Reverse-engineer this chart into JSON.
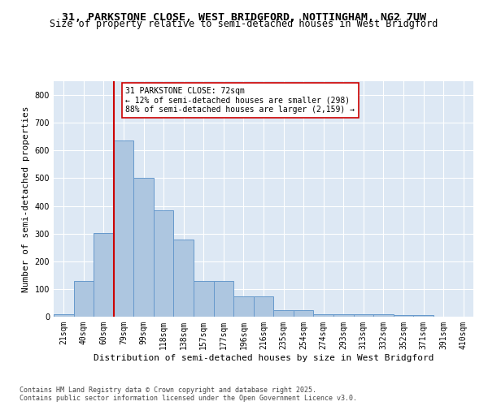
{
  "title": "31, PARKSTONE CLOSE, WEST BRIDGFORD, NOTTINGHAM, NG2 7UW",
  "subtitle": "Size of property relative to semi-detached houses in West Bridgford",
  "xlabel": "Distribution of semi-detached houses by size in West Bridgford",
  "ylabel": "Number of semi-detached properties",
  "categories": [
    "21sqm",
    "40sqm",
    "60sqm",
    "79sqm",
    "99sqm",
    "118sqm",
    "138sqm",
    "157sqm",
    "177sqm",
    "196sqm",
    "216sqm",
    "235sqm",
    "254sqm",
    "274sqm",
    "293sqm",
    "313sqm",
    "332sqm",
    "352sqm",
    "371sqm",
    "391sqm",
    "410sqm"
  ],
  "values": [
    8,
    128,
    302,
    635,
    500,
    383,
    278,
    130,
    130,
    72,
    72,
    23,
    23,
    10,
    10,
    8,
    8,
    5,
    5,
    0,
    0
  ],
  "bar_color": "#adc6e0",
  "bar_edge_color": "#6699cc",
  "background_color": "#dde8f4",
  "grid_color": "#ffffff",
  "vline_color": "#cc0000",
  "annotation_text": "31 PARKSTONE CLOSE: 72sqm\n← 12% of semi-detached houses are smaller (298)\n88% of semi-detached houses are larger (2,159) →",
  "annotation_box_color": "#ffffff",
  "annotation_box_edge": "#cc0000",
  "ylim": [
    0,
    850
  ],
  "yticks": [
    0,
    100,
    200,
    300,
    400,
    500,
    600,
    700,
    800
  ],
  "footer": "Contains HM Land Registry data © Crown copyright and database right 2025.\nContains public sector information licensed under the Open Government Licence v3.0.",
  "title_fontsize": 9.5,
  "subtitle_fontsize": 8.5,
  "xlabel_fontsize": 8,
  "ylabel_fontsize": 8,
  "tick_fontsize": 7,
  "annotation_fontsize": 7,
  "footer_fontsize": 6
}
